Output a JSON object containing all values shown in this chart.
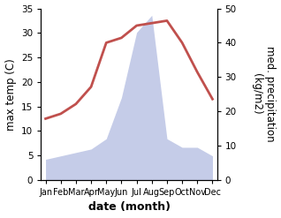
{
  "months": [
    "Jan",
    "Feb",
    "Mar",
    "Apr",
    "May",
    "Jun",
    "Jul",
    "Aug",
    "Sep",
    "Oct",
    "Nov",
    "Dec"
  ],
  "temp": [
    12.5,
    13.5,
    15.5,
    19.0,
    28.0,
    29.0,
    31.5,
    32.0,
    32.5,
    28.0,
    22.0,
    16.5
  ],
  "precip": [
    6.0,
    7.0,
    8.0,
    9.0,
    12.0,
    24.0,
    43.0,
    48.0,
    12.0,
    9.5,
    9.5,
    7.0
  ],
  "temp_color": "#c0504d",
  "precip_fill_color": "#c5cce8",
  "xlabel": "date (month)",
  "ylabel_left": "max temp (C)",
  "ylabel_right": "med. precipitation\n(kg/m2)",
  "ylim_left": [
    0,
    35
  ],
  "ylim_right": [
    0,
    50
  ],
  "yticks_left": [
    0,
    5,
    10,
    15,
    20,
    25,
    30,
    35
  ],
  "yticks_right": [
    0,
    10,
    20,
    30,
    40,
    50
  ],
  "bg_color": "#ffffff",
  "temp_linewidth": 2.0,
  "xlabel_fontsize": 9,
  "xlabel_fontweight": "bold",
  "ylabel_fontsize": 8.5
}
